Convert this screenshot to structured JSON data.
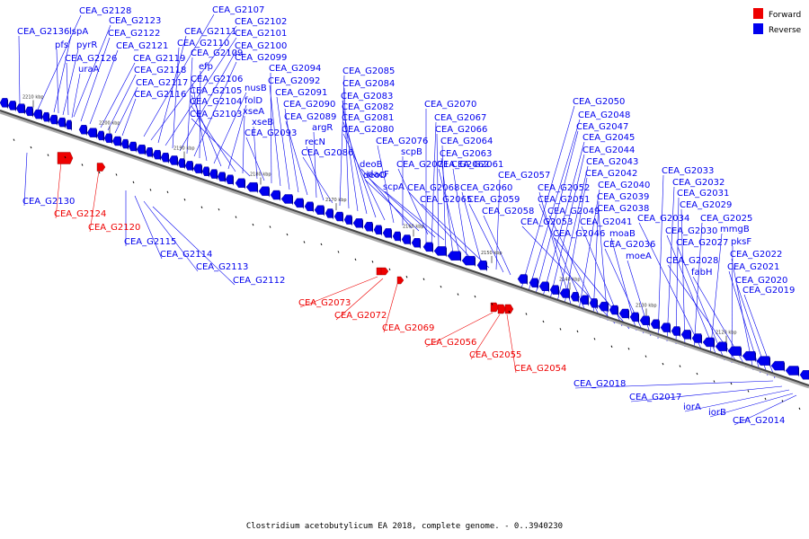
{
  "caption": "Clostridium acetobutylicum EA 2018, complete genome. - 0..3940230",
  "legend": [
    {
      "label": "Forward",
      "color": "#ee0000"
    },
    {
      "label": "Reverse",
      "color": "#0000ee"
    }
  ],
  "colors": {
    "forward": "#ee0000",
    "reverse": "#0000ee",
    "backbone": "#555555"
  },
  "ticks": [
    "2210 kbp",
    "2200 kbp",
    "2190 kbp",
    "2180 kbp",
    "2170 kbp",
    "2160 kbp",
    "2150 kbp",
    "2140 kbp",
    "2130 kbp",
    "2120 kbp"
  ],
  "reverse_labels": [
    "CEA_G2128",
    "CEA_G2136",
    "lspA",
    "CEA_G2123",
    "pfs",
    "pyrR",
    "CEA_G2122",
    "CEA_G2126",
    "CEA_G2121",
    "uraA",
    "CEA_G2119",
    "CEA_G2118",
    "CEA_G2117",
    "CEA_G2116",
    "CEA_G2107",
    "CEA_G2102",
    "CEA_G2111",
    "CEA_G2101",
    "CEA_G2110",
    "CEA_G2100",
    "CEA_G2109",
    "CEA_G2099",
    "efp",
    "CEA_G2106",
    "nusB",
    "CEA_G2105",
    "folD",
    "CEA_G2104",
    "xseA",
    "CEA_G2103",
    "xseB",
    "CEA_G2093",
    "CEA_G2094",
    "CEA_G2092",
    "CEA_G2091",
    "CEA_G2090",
    "CEA_G2089",
    "argR",
    "recN",
    "CEA_G2086",
    "CEA_G2085",
    "CEA_G2084",
    "CEA_G2083",
    "CEA_G2082",
    "CEA_G2081",
    "CEA_G2080",
    "CEA_G2076",
    "scpB",
    "deoB",
    "deoD",
    "CEA_G2071",
    "dacF",
    "scpA",
    "CEA_G2070",
    "CEA_G2067",
    "CEA_G2066",
    "CEA_G2064",
    "CEA_G2063",
    "CEA_G2062",
    "CEA_G2061",
    "CEA_G2068",
    "CEA_G2060",
    "CEA_G2065",
    "CEA_G2057",
    "CEA_G2059",
    "CEA_G2058",
    "CEA_G2050",
    "CEA_G2048",
    "CEA_G2047",
    "CEA_G2045",
    "CEA_G2044",
    "CEA_G2043",
    "CEA_G2042",
    "CEA_G2052",
    "CEA_G2040",
    "CEA_G2051",
    "CEA_G2039",
    "CEA_G2049",
    "CEA_G2038",
    "CEA_G2053",
    "CEA_G2041",
    "CEA_G2046",
    "moaB",
    "CEA_G2036",
    "moeA",
    "CEA_G2033",
    "CEA_G2032",
    "CEA_G2031",
    "CEA_G2029",
    "CEA_G2025",
    "CEA_G2034",
    "mmgB",
    "CEA_G2030",
    "CEA_G2027",
    "pksF",
    "CEA_G2028",
    "fabH",
    "CEA_G2022",
    "CEA_G2021",
    "CEA_G2020",
    "CEA_G2019",
    "CEA_G2130",
    "CEA_G2115",
    "CEA_G2114",
    "CEA_G2113",
    "CEA_G2112",
    "CEA_G2018",
    "CEA_G2017",
    "iorA",
    "iorB",
    "CEA_G2014"
  ],
  "forward_labels": [
    "CEA_G2124",
    "CEA_G2120",
    "CEA_G2073",
    "CEA_G2072",
    "CEA_G2069",
    "CEA_G2056",
    "CEA_G2055",
    "CEA_G2054"
  ]
}
